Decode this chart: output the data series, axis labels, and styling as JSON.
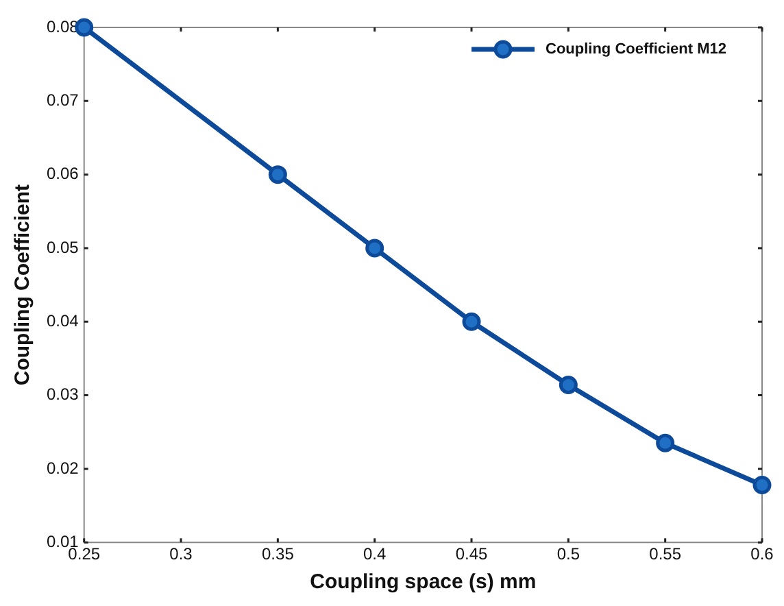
{
  "chart_data": {
    "type": "line",
    "xlabel": "Coupling space (s) mm",
    "ylabel": "Coupling Coefficient",
    "x": [
      0.25,
      0.35,
      0.4,
      0.45,
      0.5,
      0.55,
      0.6
    ],
    "series": [
      {
        "name": "Coupling Coefficient M12",
        "color": "#0d4a9a",
        "values": [
          0.08,
          0.06,
          0.05,
          0.04,
          0.0314,
          0.0235,
          0.0178
        ]
      }
    ],
    "xlim": [
      0.25,
      0.6
    ],
    "xticks": [
      0.25,
      0.3,
      0.35,
      0.4,
      0.45,
      0.5,
      0.55,
      0.6
    ],
    "ylim": [
      0.01,
      0.08
    ],
    "yticks": [
      0.01,
      0.02,
      0.03,
      0.04,
      0.05,
      0.06,
      0.07,
      0.08
    ],
    "grid": false,
    "legend": "top right",
    "marker": "circle",
    "line_style": "solid"
  }
}
